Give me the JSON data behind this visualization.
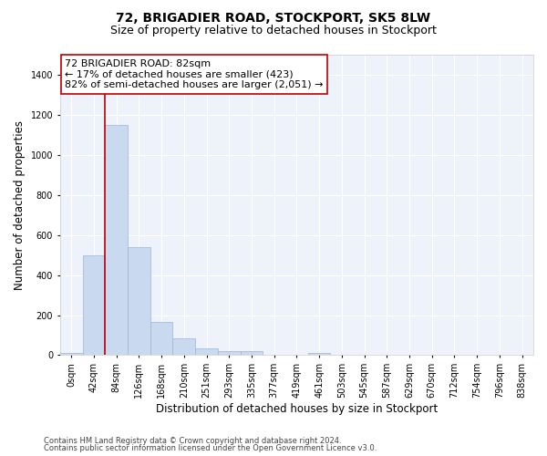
{
  "title1": "72, BRIGADIER ROAD, STOCKPORT, SK5 8LW",
  "title2": "Size of property relative to detached houses in Stockport",
  "xlabel": "Distribution of detached houses by size in Stockport",
  "ylabel": "Number of detached properties",
  "footer1": "Contains HM Land Registry data © Crown copyright and database right 2024.",
  "footer2": "Contains public sector information licensed under the Open Government Licence v3.0.",
  "annotation_line1": "72 BRIGADIER ROAD: 82sqm",
  "annotation_line2": "← 17% of detached houses are smaller (423)",
  "annotation_line3": "82% of semi-detached houses are larger (2,051) →",
  "bar_color": "#c9d9f0",
  "bar_edge_color": "#9ab5d9",
  "vline_color": "#c00000",
  "vline_x_index": 2,
  "categories": [
    "0sqm",
    "42sqm",
    "84sqm",
    "126sqm",
    "168sqm",
    "210sqm",
    "251sqm",
    "293sqm",
    "335sqm",
    "377sqm",
    "419sqm",
    "461sqm",
    "503sqm",
    "545sqm",
    "587sqm",
    "629sqm",
    "670sqm",
    "712sqm",
    "754sqm",
    "796sqm",
    "838sqm"
  ],
  "values": [
    10,
    500,
    1150,
    540,
    165,
    85,
    35,
    20,
    18,
    0,
    0,
    13,
    0,
    0,
    0,
    0,
    0,
    0,
    0,
    0,
    0
  ],
  "ylim": [
    0,
    1500
  ],
  "yticks": [
    0,
    200,
    400,
    600,
    800,
    1000,
    1200,
    1400
  ],
  "bg_color": "#eef2fb",
  "grid_color": "#ffffff",
  "title1_fontsize": 10,
  "title2_fontsize": 9,
  "tick_fontsize": 7,
  "label_fontsize": 8.5,
  "footer_fontsize": 6,
  "annot_fontsize": 8
}
